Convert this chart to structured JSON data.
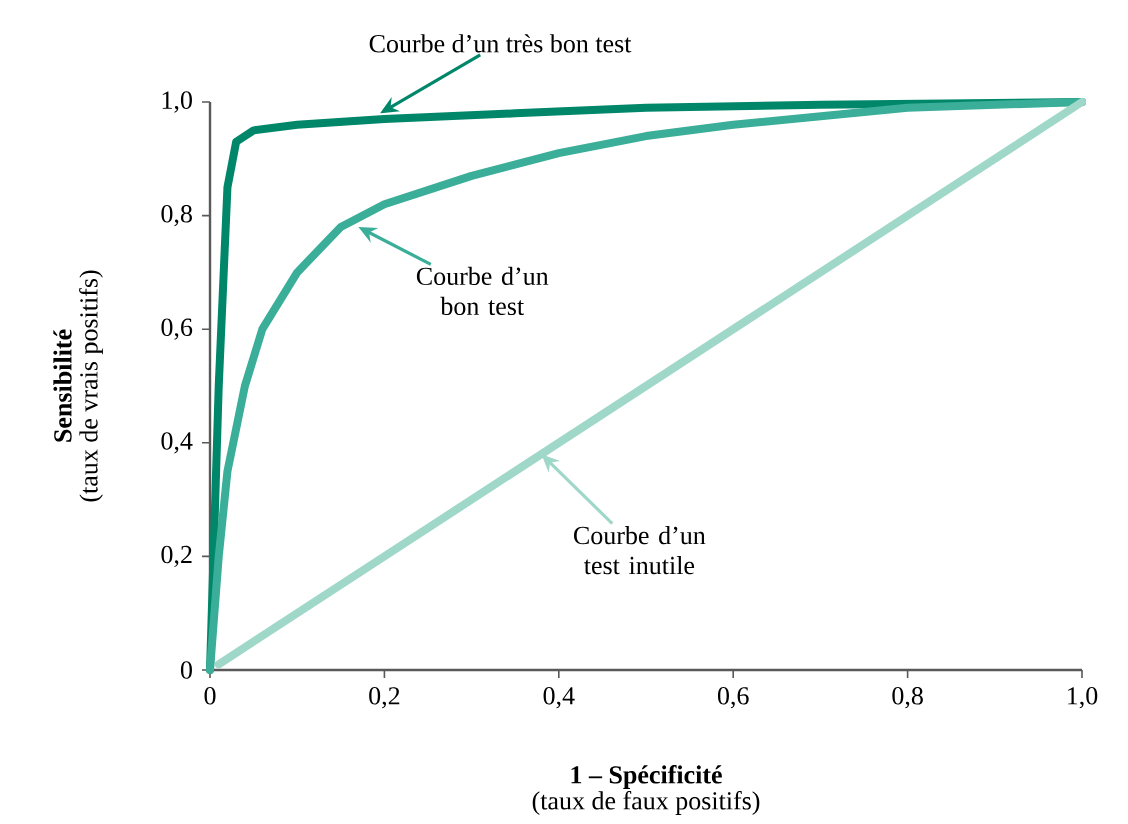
{
  "chart_data": {
    "type": "line",
    "xlabel": "1 – Spécificité",
    "ylabel": "Sensibilité",
    "xlim": [
      0,
      1
    ],
    "ylim": [
      0,
      1
    ],
    "xticks": [
      0,
      {
        "value": 0.2,
        "label": "0,2"
      },
      {
        "value": 0.4,
        "label": "0,4"
      },
      {
        "value": 0.6,
        "label": "0,6"
      },
      {
        "value": 0.8,
        "label": "0,8"
      },
      {
        "value": 1,
        "label": "1,0"
      }
    ],
    "yticks": [
      0,
      {
        "value": 0.2,
        "label": "0,2"
      },
      {
        "value": 0.4,
        "label": "0,4"
      },
      {
        "value": 0.6,
        "label": "0,6"
      },
      {
        "value": 0.8,
        "label": "0,8"
      },
      {
        "value": 1,
        "label": "1,0"
      }
    ],
    "series": [
      {
        "color": "#00876a",
        "x": [
          0,
          0.01,
          0.02,
          0.03,
          0.05,
          0.1,
          0.2,
          0.35,
          0.5,
          0.7,
          1
        ],
        "values": [
          0,
          0.5,
          0.85,
          0.93,
          0.95,
          0.96,
          0.97,
          0.98,
          0.99,
          0.995,
          1
        ]
      },
      {
        "color": "#3aae98",
        "x": [
          0,
          0.01,
          0.02,
          0.04,
          0.06,
          0.1,
          0.15,
          0.2,
          0.3,
          0.4,
          0.5,
          0.6,
          0.8,
          1
        ],
        "values": [
          0,
          0.2,
          0.35,
          0.5,
          0.6,
          0.7,
          0.78,
          0.82,
          0.87,
          0.91,
          0.94,
          0.96,
          0.99,
          1
        ]
      },
      {
        "color": "#9fd8c8",
        "x": [
          0.01,
          1
        ],
        "values": [
          0.01,
          1
        ]
      }
    ],
    "annotations": [
      {
        "text": "Courbe d’un très bon test",
        "x": 0.195,
        "y": 0.98
      },
      {
        "text": "Courbe d’un bon test",
        "x": 0.17,
        "y": 0.78
      },
      {
        "text": "Courbe d’un test inutile",
        "x": 0.38,
        "y": 0.38
      },
      "(taux de faux positifs)",
      "(taux de vrais positifs)"
    ]
  }
}
